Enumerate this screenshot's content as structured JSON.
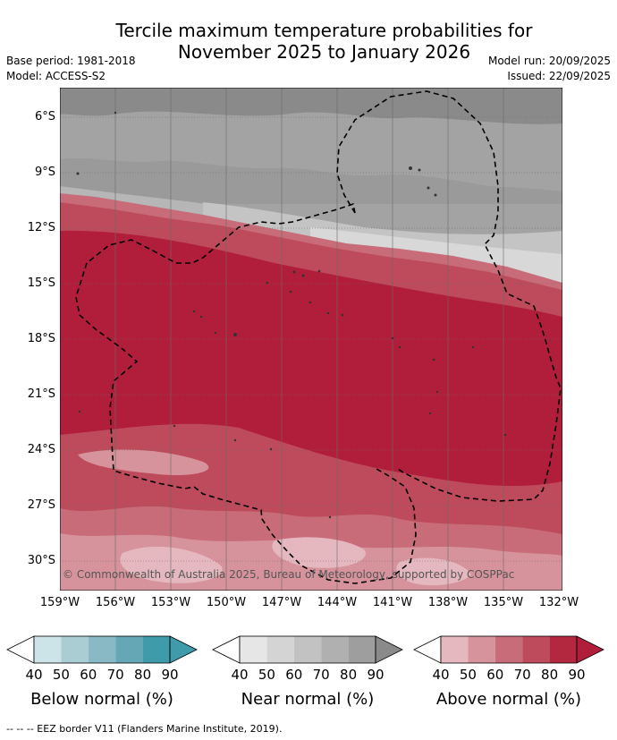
{
  "title": {
    "line1": "Tercile maximum temperature probabilities for",
    "line2": "November 2025 to January 2026"
  },
  "meta": {
    "base_period": "Base period: 1981-2018",
    "model": "Model: ACCESS-S2",
    "model_run": "Model run: 20/09/2025",
    "issued": "Issued: 22/09/2025"
  },
  "map": {
    "lat_ticks": [
      "6°S",
      "9°S",
      "12°S",
      "15°S",
      "18°S",
      "21°S",
      "24°S",
      "27°S",
      "30°S"
    ],
    "lon_ticks": [
      "159°W",
      "156°W",
      "153°W",
      "150°W",
      "147°W",
      "144°W",
      "141°W",
      "138°W",
      "135°W",
      "132°W"
    ],
    "copyright": "© Commonwealth of Australia 2025, Bureau of Meteorology, supported by COSPPac"
  },
  "colorbars": [
    {
      "label": "Below normal (%)",
      "ticks": [
        "40",
        "50",
        "60",
        "70",
        "80",
        "90"
      ],
      "colors": [
        "#cce3e8",
        "#aacdd4",
        "#88b9c4",
        "#65a7b4",
        "#3f9aaa"
      ],
      "end": "#3f9aaa"
    },
    {
      "label": "Near normal (%)",
      "ticks": [
        "40",
        "50",
        "60",
        "70",
        "80",
        "90"
      ],
      "colors": [
        "#e6e6e6",
        "#d4d4d4",
        "#c2c2c2",
        "#b0b0b0",
        "#9e9e9e"
      ],
      "end": "#8a8a8a"
    },
    {
      "label": "Above normal (%)",
      "ticks": [
        "40",
        "50",
        "60",
        "70",
        "80",
        "90"
      ],
      "colors": [
        "#e4b8be",
        "#d6939c",
        "#c96c79",
        "#bd4b5b",
        "#b4283f"
      ],
      "end": "#b11e3c"
    }
  ],
  "footer": "-- -- -- EEZ border V11 (Flanders Marine Institute, 2019)."
}
